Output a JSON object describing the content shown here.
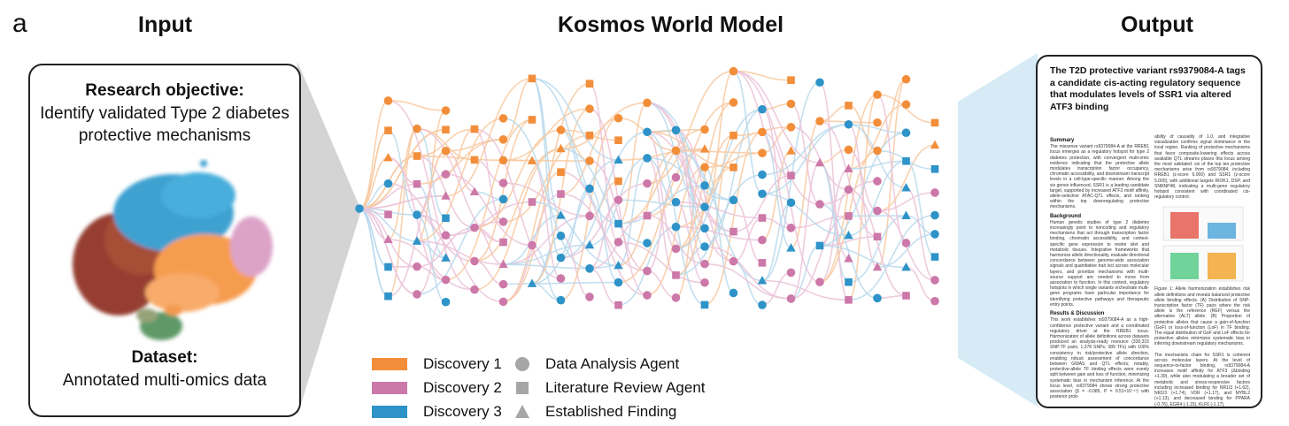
{
  "panel_letter": "a",
  "columns": {
    "input_title": "Input",
    "model_title": "Kosmos World Model",
    "output_title": "Output"
  },
  "input": {
    "objective_heading": "Research objective:",
    "objective_text": "Identify validated Type 2 diabetes protective mechanisms",
    "dataset_heading": "Dataset:",
    "dataset_text": "Annotated multi-omics data"
  },
  "legend": {
    "discoveries": [
      {
        "label": "Discovery 1",
        "color": "#f28e3a"
      },
      {
        "label": "Discovery 2",
        "color": "#cc78a8"
      },
      {
        "label": "Discovery 3",
        "color": "#2e93c8"
      }
    ],
    "node_types": [
      {
        "label": "Data Analysis Agent",
        "icon": "circle-icon"
      },
      {
        "label": "Literature Review Agent",
        "icon": "square-icon"
      },
      {
        "label": "Established Finding",
        "icon": "triangle-icon"
      }
    ],
    "shape_color": "#a6a6a6"
  },
  "output": {
    "paper_title": "The T2D protective variant rs9379084-A tags a candidate cis-acting regulatory sequence that modulates levels of SSR1 via altered ATF3 binding",
    "summary_heading": "Summary",
    "summary_text": "The missense variant rs9379084-A at the RREB1 locus emerges as a regulatory hotspot for type 2 diabetes protection, with convergent multi-omic evidence indicating that the protective allele modulates transcription factor occupancy, chromatin accessibility, and downstream transcript levels in a cell-type-specific manner. Among the six genes influenced, SSR1 is a leading candidate target, supported by increased ATF3 motif affinity, allele-selective ATAC-QTL effects, and ranking within the top downregulating protective mechanisms.",
    "background_heading": "Background",
    "background_text": "Human genetic studies of type 2 diabetes increasingly point to noncoding and regulatory mechanisms that act through transcription factor binding, chromatin accessibility, and context-specific gene expression to rewire islet and metabolic tissues. Integrative frameworks that harmonize allelic directionality, evaluate directional concordance between genome-wide association signals and quantitative trait loci across molecular layers, and prioritize mechanisms with multi-source support are needed to move from association to function. In this context, regulatory hotspots in which single variants orchestrate multi-gene programs have particular importance for identifying protective pathways and therapeutic entry points.",
    "results_heading": "Results & Discussion",
    "results_text": "This work establishes rs9379084-A as a high-confidence protective variant and a coordinated regulatory driver at the RREB1 locus. Harmonization of allele definitions across datasets produced an analysis-ready resource (330,315 SNP-TF pairs; 1,378 SNPs; 389 TFs) with 100% consistency in risk/protective allele direction, enabling robust assessment of concordance between GWAS and QTL effects; notably, protective-allele TF binding effects were evenly split between gain and loss of function, minimizing systematic bias in mechanism inference. At the locus level, rs9379084 shows strong protective association (β = -0.085, P = 9.51×10⁻¹⁷) with posterior prob-",
    "col2_text_a": "ability of causality of 1.0, and integrative visualization confirms signal dominance in the local region. Ranking of protective mechanisms that favor composite-lowering effects across available QTL streams places this locus among the most validated: six of the top ten protective mechanisms arise from rs9379084, including RREB1 (z-score 6.000) and SSR1 (z-score 5.000), with additional targets RIOK1, DSP, and SNRNP48, indicating a multi-gene regulatory hotspot consistent with coordinated cis-regulatory control.",
    "figure_caption": "Figure 1: Allele harmonization establishes risk allele definitions and reveals balanced protective allele binding effects. (A) Distribution of SNP-transcription factor (TF) pairs where the risk allele is the reference (REF) versus the alternative (ALT) allele. (B) Proportion of protective alleles that cause a gain-of-function (GoF) or loss-of-function (LoF) in TF binding. The equal distribution of GoF and LoF effects for protective alleles minimizes systematic bias in inferring downstream regulatory mechanisms.",
    "col2_text_b": "The mechanistic chain for SSR1 is coherent across molecular layers. At the level of sequence-to-factor binding, rs9379084-A increases motif affinity for ATF3 (Δbinding +1.39), while also modulating a broader set of metabolic and stress-responsive factors including increased binding for NR1I3 (+1.62), NR1I3 (+1.74), VDR (+1.17), and MYBL2 (+1.13), and decreased binding for PPARA (-0.76), EGR4 (-1.15), KLF6 (-1.17),"
  }
}
